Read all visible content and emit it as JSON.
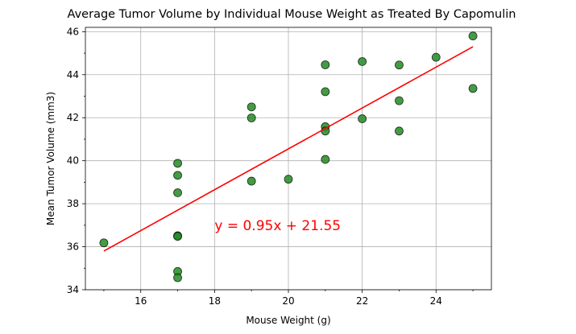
{
  "chart_data": {
    "type": "scatter",
    "title": "Average Tumor Volume by Individual Mouse Weight as Treated By Capomulin",
    "xlabel": "Mouse Weight (g)",
    "ylabel": "Mean Tumor Volume (mm3)",
    "xlim": [
      14.5,
      25.5
    ],
    "ylim": [
      34,
      46.2
    ],
    "xticks": [
      16,
      18,
      20,
      22,
      24
    ],
    "yticks": [
      34,
      36,
      38,
      40,
      42,
      44,
      46
    ],
    "grid": true,
    "colors": {
      "points": "#228b22",
      "regression": "#ff0000",
      "annotation": "#ff0000"
    },
    "points": [
      {
        "x": 15,
        "y": 36.18
      },
      {
        "x": 17,
        "y": 39.88
      },
      {
        "x": 17,
        "y": 39.32
      },
      {
        "x": 17,
        "y": 38.51
      },
      {
        "x": 17,
        "y": 36.51
      },
      {
        "x": 17,
        "y": 36.48
      },
      {
        "x": 17,
        "y": 34.85
      },
      {
        "x": 17,
        "y": 34.56
      },
      {
        "x": 19,
        "y": 42.5
      },
      {
        "x": 19,
        "y": 41.99
      },
      {
        "x": 19,
        "y": 39.05
      },
      {
        "x": 20,
        "y": 39.14
      },
      {
        "x": 21,
        "y": 44.46
      },
      {
        "x": 21,
        "y": 43.21
      },
      {
        "x": 21,
        "y": 41.58
      },
      {
        "x": 21,
        "y": 41.38
      },
      {
        "x": 21,
        "y": 40.06
      },
      {
        "x": 22,
        "y": 44.61
      },
      {
        "x": 22,
        "y": 41.95
      },
      {
        "x": 23,
        "y": 44.45
      },
      {
        "x": 23,
        "y": 42.79
      },
      {
        "x": 23,
        "y": 41.38
      },
      {
        "x": 24,
        "y": 44.81
      },
      {
        "x": 25,
        "y": 45.8
      },
      {
        "x": 25,
        "y": 43.36
      }
    ],
    "regression": {
      "slope": 0.95,
      "intercept": 21.55,
      "x_range": [
        15,
        25
      ]
    },
    "annotation": {
      "text": "y = 0.95x + 21.55",
      "x": 18,
      "y": 37
    }
  }
}
